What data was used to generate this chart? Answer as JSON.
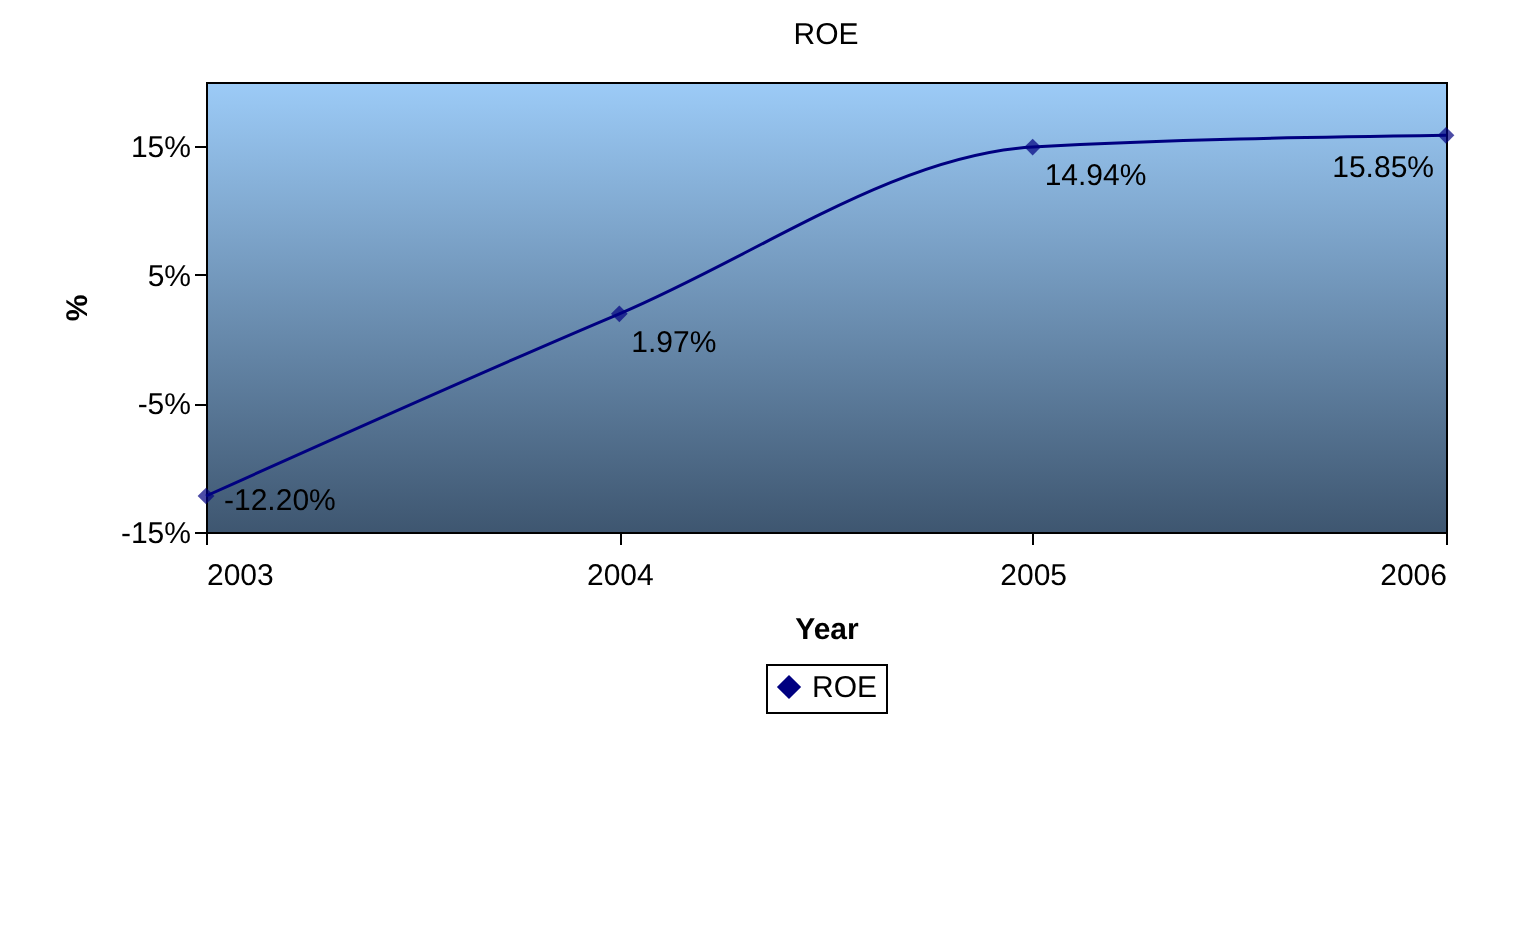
{
  "chart_data": {
    "type": "line",
    "title": "ROE",
    "xlabel": "Year",
    "ylabel": "%",
    "x": [
      2003,
      2004,
      2005,
      2006
    ],
    "series": [
      {
        "name": "ROE",
        "color": "#000080",
        "values": [
          -12.2,
          1.97,
          14.94,
          15.85
        ],
        "value_labels": [
          "-12.20%",
          "1.97%",
          "14.94%",
          "15.85%"
        ]
      }
    ],
    "xlim": [
      2003,
      2006
    ],
    "xticks": [
      2003,
      2004,
      2005,
      2006
    ],
    "ylim": [
      -15,
      20
    ],
    "yticks": [
      {
        "value": -15,
        "label": "-15%"
      },
      {
        "value": -5,
        "label": "-5%"
      },
      {
        "value": 5,
        "label": "5%"
      },
      {
        "value": 15,
        "label": "15%"
      }
    ],
    "marker": "diamond",
    "line_style": "solid",
    "legend": "bottom",
    "grid": false
  }
}
